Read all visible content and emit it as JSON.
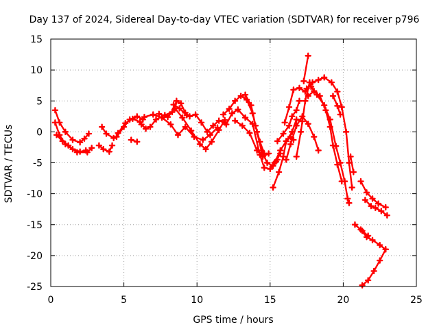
{
  "chart_data": {
    "type": "scatter",
    "title": "Day 137 of 2024, Sidereal Day-to-day VTEC variation (SDTVAR) for receiver p796",
    "xlabel": "GPS time / hours",
    "ylabel": "SDTVAR / TECUs",
    "xlim": [
      0,
      25
    ],
    "ylim": [
      -25,
      15
    ],
    "xticks": [
      0,
      5,
      10,
      15,
      20,
      25
    ],
    "yticks": [
      -25,
      -20,
      -15,
      -10,
      -5,
      0,
      5,
      10,
      15
    ],
    "grid": true,
    "legend": "none",
    "marker": "plus",
    "color": "#ff0000",
    "series": [
      {
        "points": [
          [
            0.3,
            3.5
          ],
          [
            0.6,
            1.5
          ],
          [
            1.0,
            0.0
          ],
          [
            1.5,
            -1.3
          ],
          [
            2.0,
            -1.7
          ],
          [
            2.3,
            -1.1
          ],
          [
            2.6,
            -0.3
          ]
        ]
      },
      {
        "points": [
          [
            0.3,
            1.5
          ],
          [
            0.6,
            -0.5
          ],
          [
            1.0,
            -2.0
          ],
          [
            1.5,
            -2.8
          ],
          [
            2.0,
            -3.2
          ],
          [
            2.4,
            -3.0
          ]
        ]
      },
      {
        "points": [
          [
            0.4,
            -0.5
          ],
          [
            0.8,
            -1.5
          ],
          [
            1.2,
            -2.2
          ],
          [
            1.8,
            -3.3
          ],
          [
            2.5,
            -3.3
          ],
          [
            2.8,
            -2.6
          ]
        ]
      },
      {
        "points": [
          [
            3.3,
            -2.2
          ],
          [
            3.6,
            -2.8
          ],
          [
            4.0,
            -3.2
          ],
          [
            4.2,
            -2.2
          ]
        ]
      },
      {
        "points": [
          [
            3.5,
            0.8
          ],
          [
            3.8,
            -0.3
          ],
          [
            4.3,
            -1.0
          ]
        ]
      },
      {
        "points": [
          [
            4.5,
            -0.8
          ],
          [
            5.0,
            0.8
          ],
          [
            5.4,
            2.0
          ],
          [
            5.9,
            2.5
          ],
          [
            6.3,
            2.0
          ]
        ]
      },
      {
        "points": [
          [
            4.6,
            -0.2
          ],
          [
            5.1,
            1.4
          ],
          [
            5.6,
            2.1
          ],
          [
            6.1,
            1.6
          ]
        ]
      },
      {
        "points": [
          [
            5.5,
            -1.3
          ],
          [
            5.9,
            -1.6
          ]
        ]
      },
      {
        "points": [
          [
            6.2,
            1.2
          ],
          [
            6.5,
            0.5
          ],
          [
            6.8,
            0.8
          ],
          [
            7.2,
            2.0
          ],
          [
            7.8,
            2.7
          ],
          [
            8.3,
            3.2
          ],
          [
            8.6,
            5.0
          ],
          [
            8.9,
            4.6
          ],
          [
            9.2,
            3.1
          ],
          [
            9.5,
            2.5
          ],
          [
            9.9,
            2.8
          ],
          [
            10.3,
            1.5
          ],
          [
            10.7,
            0.0
          ],
          [
            11.1,
            1.0
          ],
          [
            11.5,
            1.8
          ],
          [
            11.9,
            1.5
          ]
        ]
      },
      {
        "points": [
          [
            6.4,
            2.4
          ],
          [
            7.0,
            2.8
          ],
          [
            7.6,
            2.3
          ],
          [
            8.2,
            1.2
          ],
          [
            8.7,
            -0.5
          ],
          [
            9.2,
            0.8
          ],
          [
            9.8,
            -0.8
          ],
          [
            10.4,
            -1.3
          ],
          [
            10.9,
            -0.5
          ],
          [
            11.4,
            0.7
          ]
        ]
      },
      {
        "points": [
          [
            7.4,
            2.9
          ],
          [
            8.0,
            2.4
          ],
          [
            8.5,
            3.8
          ],
          [
            9.0,
            2.3
          ],
          [
            9.6,
            0.2
          ],
          [
            10.2,
            -2.0
          ],
          [
            10.6,
            -2.8
          ],
          [
            11.0,
            -1.6
          ],
          [
            11.5,
            0.3
          ],
          [
            11.9,
            1.9
          ]
        ]
      },
      {
        "points": [
          [
            8.4,
            4.4
          ],
          [
            8.8,
            3.8
          ],
          [
            9.3,
            2.7
          ]
        ]
      },
      {
        "points": [
          [
            11.8,
            2.8
          ],
          [
            12.2,
            3.7
          ],
          [
            12.6,
            5.0
          ],
          [
            13.0,
            5.8
          ],
          [
            13.4,
            5.2
          ],
          [
            13.8,
            3.0
          ],
          [
            14.1,
            0.0
          ],
          [
            14.4,
            -3.0
          ],
          [
            14.8,
            -5.0
          ],
          [
            15.2,
            -5.5
          ],
          [
            15.5,
            -4.5
          ]
        ]
      },
      {
        "points": [
          [
            12.0,
            1.2
          ],
          [
            12.4,
            3.0
          ],
          [
            12.8,
            3.6
          ],
          [
            13.3,
            2.3
          ],
          [
            13.8,
            1.3
          ],
          [
            14.3,
            -3.7
          ],
          [
            14.6,
            -5.8
          ],
          [
            15.0,
            -6.0
          ],
          [
            15.4,
            -4.8
          ],
          [
            15.7,
            -3.5
          ]
        ]
      },
      {
        "points": [
          [
            12.6,
            1.8
          ],
          [
            13.1,
            1.0
          ],
          [
            13.6,
            -0.2
          ],
          [
            14.1,
            -3.0
          ],
          [
            14.5,
            -4.0
          ],
          [
            14.9,
            -3.5
          ]
        ]
      },
      {
        "points": [
          [
            13.3,
            6.0
          ],
          [
            13.7,
            4.3
          ],
          [
            14.0,
            1.0
          ],
          [
            14.3,
            -1.6
          ],
          [
            14.6,
            -3.5
          ]
        ]
      },
      {
        "points": [
          [
            15.2,
            -9.0
          ],
          [
            15.6,
            -6.5
          ],
          [
            15.9,
            -4.0
          ],
          [
            16.1,
            -1.5
          ],
          [
            16.5,
            0.0
          ],
          [
            16.8,
            2.0
          ],
          [
            17.2,
            1.7
          ]
        ]
      },
      {
        "points": [
          [
            15.3,
            -5.0
          ],
          [
            15.7,
            -3.0
          ],
          [
            16.1,
            -1.5
          ],
          [
            16.4,
            -0.8
          ],
          [
            16.6,
            -1.3
          ]
        ]
      },
      {
        "points": [
          [
            15.5,
            -1.5
          ],
          [
            15.9,
            -0.3
          ],
          [
            16.3,
            1.0
          ],
          [
            16.5,
            2.5
          ],
          [
            16.8,
            3.5
          ],
          [
            17.0,
            5.0
          ]
        ]
      },
      {
        "points": [
          [
            16.1,
            -4.5
          ],
          [
            16.4,
            -2.0
          ],
          [
            16.8,
            1.0
          ],
          [
            17.2,
            2.5
          ],
          [
            17.6,
            1.3
          ],
          [
            18.0,
            -0.8
          ],
          [
            18.3,
            -3.0
          ]
        ]
      },
      {
        "points": [
          [
            16.0,
            1.5
          ],
          [
            16.3,
            4.0
          ],
          [
            16.6,
            6.8
          ],
          [
            17.0,
            7.1
          ],
          [
            17.4,
            6.5
          ]
        ]
      },
      {
        "points": [
          [
            16.8,
            -4.0
          ],
          [
            17.1,
            0.0
          ],
          [
            17.4,
            5.0
          ],
          [
            17.7,
            8.0
          ]
        ]
      },
      {
        "points": [
          [
            17.5,
            7.0
          ],
          [
            17.9,
            8.0
          ],
          [
            18.3,
            8.4
          ],
          [
            18.7,
            8.8
          ],
          [
            19.2,
            8.0
          ],
          [
            19.6,
            6.5
          ],
          [
            19.9,
            4.0
          ],
          [
            20.2,
            0.0
          ],
          [
            20.4,
            -5.0
          ],
          [
            20.6,
            -9.0
          ]
        ]
      },
      {
        "points": [
          [
            17.6,
            5.8
          ],
          [
            18.0,
            6.6
          ],
          [
            18.4,
            5.8
          ],
          [
            18.8,
            3.5
          ],
          [
            19.1,
            0.8
          ],
          [
            19.3,
            -2.2
          ],
          [
            19.6,
            -5.3
          ],
          [
            19.9,
            -8.0
          ]
        ]
      },
      {
        "points": [
          [
            17.8,
            7.3
          ],
          [
            18.2,
            6.0
          ],
          [
            18.7,
            4.3
          ],
          [
            19.1,
            2.0
          ],
          [
            19.5,
            -2.3
          ],
          [
            19.8,
            -5.0
          ],
          [
            20.1,
            -8.0
          ],
          [
            20.3,
            -10.8
          ],
          [
            20.4,
            -11.5
          ]
        ]
      },
      {
        "points": [
          [
            19.3,
            5.8
          ],
          [
            19.6,
            4.2
          ],
          [
            19.8,
            2.8
          ]
        ]
      },
      {
        "points": [
          [
            20.5,
            -4.0
          ],
          [
            20.7,
            -6.5
          ]
        ]
      },
      {
        "points": [
          [
            20.8,
            -15.0
          ],
          [
            21.2,
            -15.8
          ],
          [
            21.6,
            -17.0
          ],
          [
            22.0,
            -17.5
          ],
          [
            22.5,
            -18.3
          ],
          [
            22.9,
            -19.0
          ]
        ]
      },
      {
        "points": [
          [
            21.2,
            -8.0
          ],
          [
            21.6,
            -9.8
          ],
          [
            22.0,
            -10.8
          ],
          [
            22.4,
            -11.6
          ],
          [
            22.9,
            -12.2
          ]
        ]
      },
      {
        "points": [
          [
            21.5,
            -11.0
          ],
          [
            21.9,
            -12.0
          ],
          [
            22.2,
            -12.3
          ],
          [
            22.6,
            -12.8
          ],
          [
            23.0,
            -13.5
          ]
        ]
      },
      {
        "points": [
          [
            21.3,
            -16.0
          ],
          [
            21.7,
            -16.8
          ]
        ]
      },
      {
        "points": [
          [
            21.3,
            -24.8
          ],
          [
            21.7,
            -24.0
          ],
          [
            22.1,
            -22.5
          ],
          [
            22.5,
            -20.8
          ],
          [
            22.9,
            -19.0
          ]
        ]
      },
      {
        "points": [
          [
            17.3,
            8.2
          ],
          [
            17.6,
            12.3
          ]
        ]
      }
    ]
  }
}
